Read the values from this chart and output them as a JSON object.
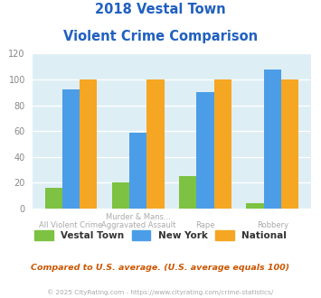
{
  "title_line1": "2018 Vestal Town",
  "title_line2": "Violent Crime Comparison",
  "vestal_town": [
    16,
    20,
    25,
    4
  ],
  "new_york": [
    92,
    59,
    90,
    108
  ],
  "national": [
    100,
    100,
    100,
    100
  ],
  "vestal_color": "#7dc242",
  "ny_color": "#4b9de8",
  "national_color": "#f5a623",
  "bg_color": "#deeef5",
  "ylim": [
    0,
    120
  ],
  "yticks": [
    0,
    20,
    40,
    60,
    80,
    100,
    120
  ],
  "title_color": "#2060c0",
  "footer_text": "Compared to U.S. average. (U.S. average equals 100)",
  "copyright_text": "© 2025 CityRating.com - https://www.cityrating.com/crime-statistics/",
  "legend_labels": [
    "Vestal Town",
    "New York",
    "National"
  ],
  "top_xlabels": [
    "",
    "Murder & Mans...",
    "",
    "Rape",
    ""
  ],
  "bot_xlabels": [
    "All Violent Crime",
    "Aggravated Assault",
    "",
    "",
    "Robbery"
  ]
}
